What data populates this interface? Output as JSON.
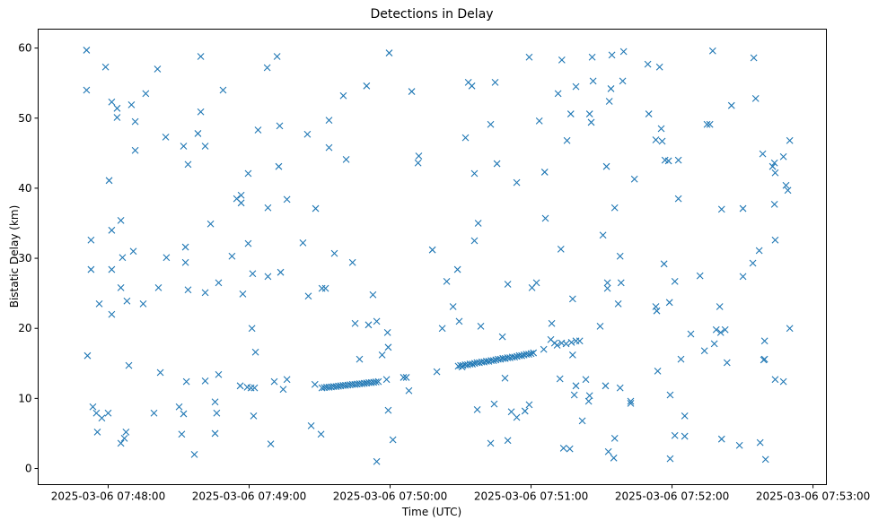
{
  "chart_data": {
    "type": "scatter",
    "title": "Detections in Delay",
    "xlabel": "Time (UTC)",
    "ylabel": "Bistatic Delay (km)",
    "x_units": "seconds after 2025-03-06 07:48:00",
    "xlim": [
      -29.8,
      305.7
    ],
    "ylim": [
      -2.3,
      62.7
    ],
    "grid": false,
    "marker": "x",
    "color": "#1f77b4",
    "x_ticks": [
      {
        "value": 0,
        "label": "2025-03-06 07:48:00"
      },
      {
        "value": 60,
        "label": "2025-03-06 07:49:00"
      },
      {
        "value": 120,
        "label": "2025-03-06 07:50:00"
      },
      {
        "value": 180,
        "label": "2025-03-06 07:51:00"
      },
      {
        "value": 240,
        "label": "2025-03-06 07:52:00"
      },
      {
        "value": 300,
        "label": "2025-03-06 07:53:00"
      }
    ],
    "y_ticks": [
      {
        "value": 0,
        "label": "0"
      },
      {
        "value": 10,
        "label": "10"
      },
      {
        "value": 20,
        "label": "20"
      },
      {
        "value": 30,
        "label": "30"
      },
      {
        "value": 40,
        "label": "40"
      },
      {
        "value": 50,
        "label": "50"
      },
      {
        "value": 60,
        "label": "60"
      }
    ],
    "points": [
      [
        -9.2,
        59.7
      ],
      [
        -9.2,
        54.0
      ],
      [
        -8.8,
        16.1
      ],
      [
        -7.3,
        32.6
      ],
      [
        -7.3,
        28.4
      ],
      [
        -6.5,
        8.8
      ],
      [
        -5.0,
        7.9
      ],
      [
        -4.6,
        5.2
      ],
      [
        -3.8,
        23.5
      ],
      [
        -2.7,
        7.2
      ],
      [
        -1.1,
        57.3
      ],
      [
        0,
        7.9
      ],
      [
        0.4,
        41.1
      ],
      [
        1.5,
        52.3
      ],
      [
        1.5,
        34.0
      ],
      [
        1.5,
        28.4
      ],
      [
        1.5,
        22.0
      ],
      [
        3.8,
        51.4
      ],
      [
        3.8,
        50.1
      ],
      [
        5.4,
        35.4
      ],
      [
        5.4,
        25.8
      ],
      [
        5.4,
        3.6
      ],
      [
        6.1,
        30.1
      ],
      [
        6.9,
        4.3
      ],
      [
        7.6,
        5.2
      ],
      [
        8.0,
        23.9
      ],
      [
        8.8,
        14.7
      ],
      [
        9.9,
        51.9
      ],
      [
        10.7,
        31.0
      ],
      [
        11.5,
        49.5
      ],
      [
        11.5,
        45.4
      ],
      [
        14.9,
        23.5
      ],
      [
        16.0,
        53.5
      ],
      [
        19.5,
        7.9
      ],
      [
        21.0,
        57.0
      ],
      [
        21.4,
        25.8
      ],
      [
        22.2,
        13.7
      ],
      [
        24.5,
        47.3
      ],
      [
        24.8,
        30.1
      ],
      [
        30.2,
        8.8
      ],
      [
        31.3,
        4.9
      ],
      [
        32.1,
        46.0
      ],
      [
        32.1,
        7.8
      ],
      [
        32.9,
        31.6
      ],
      [
        32.9,
        29.4
      ],
      [
        34.0,
        43.4
      ],
      [
        34.0,
        25.5
      ],
      [
        33.3,
        12.4
      ],
      [
        36.7,
        2.0
      ],
      [
        38.2,
        47.8
      ],
      [
        39.4,
        58.8
      ],
      [
        39.4,
        50.9
      ],
      [
        41.3,
        46.0
      ],
      [
        41.3,
        25.1
      ],
      [
        41.3,
        12.5
      ],
      [
        43.6,
        34.9
      ],
      [
        45.5,
        9.5
      ],
      [
        45.5,
        5.0
      ],
      [
        46.2,
        7.9
      ],
      [
        47.0,
        26.5
      ],
      [
        47.0,
        13.4
      ],
      [
        48.9,
        54.0
      ],
      [
        52.7,
        30.3
      ],
      [
        54.7,
        38.5
      ],
      [
        56.2,
        11.8
      ],
      [
        56.6,
        39.0
      ],
      [
        56.6,
        37.9
      ],
      [
        57.3,
        24.9
      ],
      [
        59.2,
        11.6
      ],
      [
        59.6,
        42.1
      ],
      [
        59.6,
        32.1
      ],
      [
        60.8,
        11.5
      ],
      [
        61.2,
        20.0
      ],
      [
        61.5,
        27.8
      ],
      [
        61.9,
        7.5
      ],
      [
        62.3,
        11.5
      ],
      [
        62.7,
        16.6
      ],
      [
        63.8,
        48.3
      ],
      [
        67.7,
        57.2
      ],
      [
        68.0,
        37.2
      ],
      [
        68.0,
        27.4
      ],
      [
        69.2,
        3.5
      ],
      [
        70.7,
        12.4
      ],
      [
        71.9,
        58.8
      ],
      [
        72.6,
        43.1
      ],
      [
        73.0,
        48.9
      ],
      [
        73.4,
        28.0
      ],
      [
        74.5,
        11.3
      ],
      [
        76.1,
        12.7
      ],
      [
        76.1,
        38.4
      ],
      [
        82.9,
        32.2
      ],
      [
        84.8,
        47.7
      ],
      [
        85.2,
        24.6
      ],
      [
        86.4,
        6.1
      ],
      [
        88.0,
        12.0
      ],
      [
        88.3,
        37.1
      ],
      [
        90.6,
        4.9
      ],
      [
        91.0,
        25.7
      ],
      [
        92.5,
        25.7
      ],
      [
        91,
        11.5
      ],
      [
        92,
        11.55
      ],
      [
        93,
        11.6
      ],
      [
        94,
        11.6
      ],
      [
        95,
        11.65
      ],
      [
        96,
        11.7
      ],
      [
        97,
        11.7
      ],
      [
        98,
        11.75
      ],
      [
        99,
        11.8
      ],
      [
        100,
        11.85
      ],
      [
        101,
        11.85
      ],
      [
        102,
        11.9
      ],
      [
        103,
        11.95
      ],
      [
        104,
        12.0
      ],
      [
        105,
        12.0
      ],
      [
        106,
        12.05
      ],
      [
        107,
        12.1
      ],
      [
        108,
        12.1
      ],
      [
        109,
        12.15
      ],
      [
        110,
        12.2
      ],
      [
        111,
        12.25
      ],
      [
        112,
        12.25
      ],
      [
        113,
        12.3
      ],
      [
        114,
        12.35
      ],
      [
        115,
        12.4
      ],
      [
        94.0,
        49.7
      ],
      [
        94.0,
        45.8
      ],
      [
        96.3,
        30.7
      ],
      [
        100.1,
        53.2
      ],
      [
        101.3,
        44.1
      ],
      [
        104.0,
        29.4
      ],
      [
        105.1,
        20.7
      ],
      [
        107.0,
        15.6
      ],
      [
        110.0,
        54.6
      ],
      [
        110.8,
        20.5
      ],
      [
        112.7,
        24.8
      ],
      [
        114.3,
        21.0
      ],
      [
        114.3,
        1.0
      ],
      [
        116.6,
        16.2
      ],
      [
        118.9,
        19.4
      ],
      [
        119.2,
        17.3
      ],
      [
        119.2,
        8.3
      ],
      [
        119.6,
        59.3
      ],
      [
        118.5,
        12.7
      ],
      [
        121.2,
        4.1
      ],
      [
        125.7,
        13.0
      ],
      [
        126.9,
        13.0
      ],
      [
        128.0,
        11.1
      ],
      [
        129.2,
        53.8
      ],
      [
        131.9,
        43.6
      ],
      [
        132.2,
        44.6
      ],
      [
        138.0,
        31.2
      ],
      [
        139.9,
        13.8
      ],
      [
        142.2,
        20.0
      ],
      [
        144.1,
        26.7
      ],
      [
        146.8,
        23.1
      ],
      [
        148.7,
        28.4
      ],
      [
        149.4,
        21.0
      ],
      [
        150.6,
        14.5
      ],
      [
        152.1,
        47.2
      ],
      [
        153.3,
        55.1
      ],
      [
        154.8,
        54.6
      ],
      [
        155.9,
        42.1
      ],
      [
        155.9,
        32.5
      ],
      [
        157.1,
        8.4
      ],
      [
        157.5,
        35.0
      ],
      [
        158.6,
        20.3
      ],
      [
        162.8,
        49.1
      ],
      [
        162.8,
        3.6
      ],
      [
        164.3,
        9.2
      ],
      [
        164.7,
        55.1
      ],
      [
        165.5,
        43.5
      ],
      [
        167.8,
        18.8
      ],
      [
        168.9,
        12.9
      ],
      [
        170.1,
        26.3
      ],
      [
        170.1,
        4.0
      ],
      [
        171.6,
        8.1
      ],
      [
        173.9,
        40.8
      ],
      [
        173.9,
        7.3
      ],
      [
        177.4,
        8.2
      ],
      [
        179.2,
        9.1
      ],
      [
        179.2,
        58.7
      ],
      [
        180.4,
        25.8
      ],
      [
        182.3,
        26.5
      ],
      [
        183.5,
        49.6
      ],
      [
        185.8,
        42.3
      ],
      [
        186.1,
        35.7
      ],
      [
        149,
        14.6
      ],
      [
        150,
        14.7
      ],
      [
        151,
        14.7
      ],
      [
        152,
        14.8
      ],
      [
        153,
        14.8
      ],
      [
        154,
        14.9
      ],
      [
        155,
        14.9
      ],
      [
        156,
        15.0
      ],
      [
        157,
        15.1
      ],
      [
        158,
        15.1
      ],
      [
        159,
        15.2
      ],
      [
        160,
        15.2
      ],
      [
        161,
        15.3
      ],
      [
        162,
        15.3
      ],
      [
        163,
        15.4
      ],
      [
        164,
        15.4
      ],
      [
        165,
        15.5
      ],
      [
        166,
        15.6
      ],
      [
        167,
        15.6
      ],
      [
        168,
        15.7
      ],
      [
        169,
        15.7
      ],
      [
        170,
        15.8
      ],
      [
        171,
        15.8
      ],
      [
        172,
        15.9
      ],
      [
        173,
        15.9
      ],
      [
        174,
        16.0
      ],
      [
        175,
        16.1
      ],
      [
        176,
        16.1
      ],
      [
        177,
        16.2
      ],
      [
        178,
        16.3
      ],
      [
        179,
        16.3
      ],
      [
        180,
        16.4
      ],
      [
        181,
        16.5
      ],
      [
        185.4,
        17.0
      ],
      [
        188.4,
        18.4
      ],
      [
        190.0,
        17.9
      ],
      [
        191.1,
        17.6
      ],
      [
        193.0,
        17.9
      ],
      [
        194.9,
        17.8
      ],
      [
        197.2,
        18.0
      ],
      [
        199.1,
        18.2
      ],
      [
        200.7,
        18.2
      ],
      [
        188.8,
        20.7
      ],
      [
        191.5,
        53.5
      ],
      [
        192.3,
        12.8
      ],
      [
        192.7,
        31.3
      ],
      [
        193.1,
        58.3
      ],
      [
        193.8,
        2.9
      ],
      [
        195.3,
        46.8
      ],
      [
        196.5,
        2.8
      ],
      [
        196.9,
        50.6
      ],
      [
        197.7,
        24.2
      ],
      [
        197.7,
        16.2
      ],
      [
        198.4,
        10.5
      ],
      [
        199.1,
        54.5
      ],
      [
        199.1,
        11.8
      ],
      [
        201.8,
        6.8
      ],
      [
        203.3,
        12.7
      ],
      [
        204.5,
        9.6
      ],
      [
        204.9,
        50.6
      ],
      [
        204.9,
        10.4
      ],
      [
        205.6,
        49.4
      ],
      [
        206.0,
        58.7
      ],
      [
        206.4,
        55.3
      ],
      [
        209.4,
        20.3
      ],
      [
        210.6,
        33.3
      ],
      [
        211.7,
        11.8
      ],
      [
        212.1,
        43.1
      ],
      [
        212.5,
        26.5
      ],
      [
        212.5,
        25.7
      ],
      [
        212.9,
        2.4
      ],
      [
        213.3,
        52.4
      ],
      [
        214.0,
        54.2
      ],
      [
        214.4,
        59.0
      ],
      [
        215.2,
        1.5
      ],
      [
        215.6,
        37.2
      ],
      [
        215.6,
        4.3
      ],
      [
        217.1,
        23.5
      ],
      [
        217.9,
        30.3
      ],
      [
        218.3,
        26.5
      ],
      [
        217.9,
        11.5
      ],
      [
        219.0,
        55.3
      ],
      [
        219.4,
        59.5
      ],
      [
        222.4,
        9.6
      ],
      [
        222.4,
        9.3
      ],
      [
        224.0,
        41.3
      ],
      [
        229.7,
        57.7
      ],
      [
        230.1,
        50.6
      ],
      [
        233.1,
        46.9
      ],
      [
        233.1,
        23.1
      ],
      [
        233.5,
        22.5
      ],
      [
        233.9,
        13.9
      ],
      [
        234.7,
        57.3
      ],
      [
        235.4,
        48.5
      ],
      [
        235.8,
        46.7
      ],
      [
        236.6,
        29.2
      ],
      [
        237.0,
        44.0
      ],
      [
        238.5,
        43.9
      ],
      [
        238.9,
        23.7
      ],
      [
        239.2,
        10.5
      ],
      [
        239.2,
        1.4
      ],
      [
        241.2,
        26.7
      ],
      [
        241.2,
        4.7
      ],
      [
        242.7,
        44.0
      ],
      [
        242.7,
        38.5
      ],
      [
        243.8,
        15.6
      ],
      [
        245.4,
        4.6
      ],
      [
        245.4,
        7.5
      ],
      [
        248.0,
        19.2
      ],
      [
        251.9,
        27.5
      ],
      [
        253.8,
        16.8
      ],
      [
        254.9,
        49.1
      ],
      [
        256.1,
        49.1
      ],
      [
        257.3,
        59.6
      ],
      [
        258.0,
        17.8
      ],
      [
        258.8,
        19.8
      ],
      [
        260.3,
        23.1
      ],
      [
        260.7,
        19.4
      ],
      [
        261.1,
        37.0
      ],
      [
        261.1,
        4.2
      ],
      [
        262.6,
        19.8
      ],
      [
        263.4,
        15.1
      ],
      [
        265.3,
        51.8
      ],
      [
        268.7,
        3.3
      ],
      [
        270.2,
        37.1
      ],
      [
        270.2,
        27.4
      ],
      [
        274.4,
        29.3
      ],
      [
        274.8,
        58.6
      ],
      [
        275.6,
        52.8
      ],
      [
        277.1,
        31.1
      ],
      [
        277.5,
        3.7
      ],
      [
        278.6,
        44.9
      ],
      [
        279.4,
        18.2
      ],
      [
        279.4,
        15.6
      ],
      [
        279.0,
        15.5
      ],
      [
        279.8,
        1.3
      ],
      [
        282.8,
        43.1
      ],
      [
        283.6,
        43.6
      ],
      [
        283.9,
        42.2
      ],
      [
        283.6,
        37.7
      ],
      [
        283.9,
        32.6
      ],
      [
        283.9,
        12.7
      ],
      [
        287.4,
        44.5
      ],
      [
        287.4,
        12.4
      ],
      [
        288.5,
        40.4
      ],
      [
        289.3,
        39.7
      ],
      [
        290.1,
        46.8
      ],
      [
        290.1,
        20.0
      ]
    ]
  }
}
